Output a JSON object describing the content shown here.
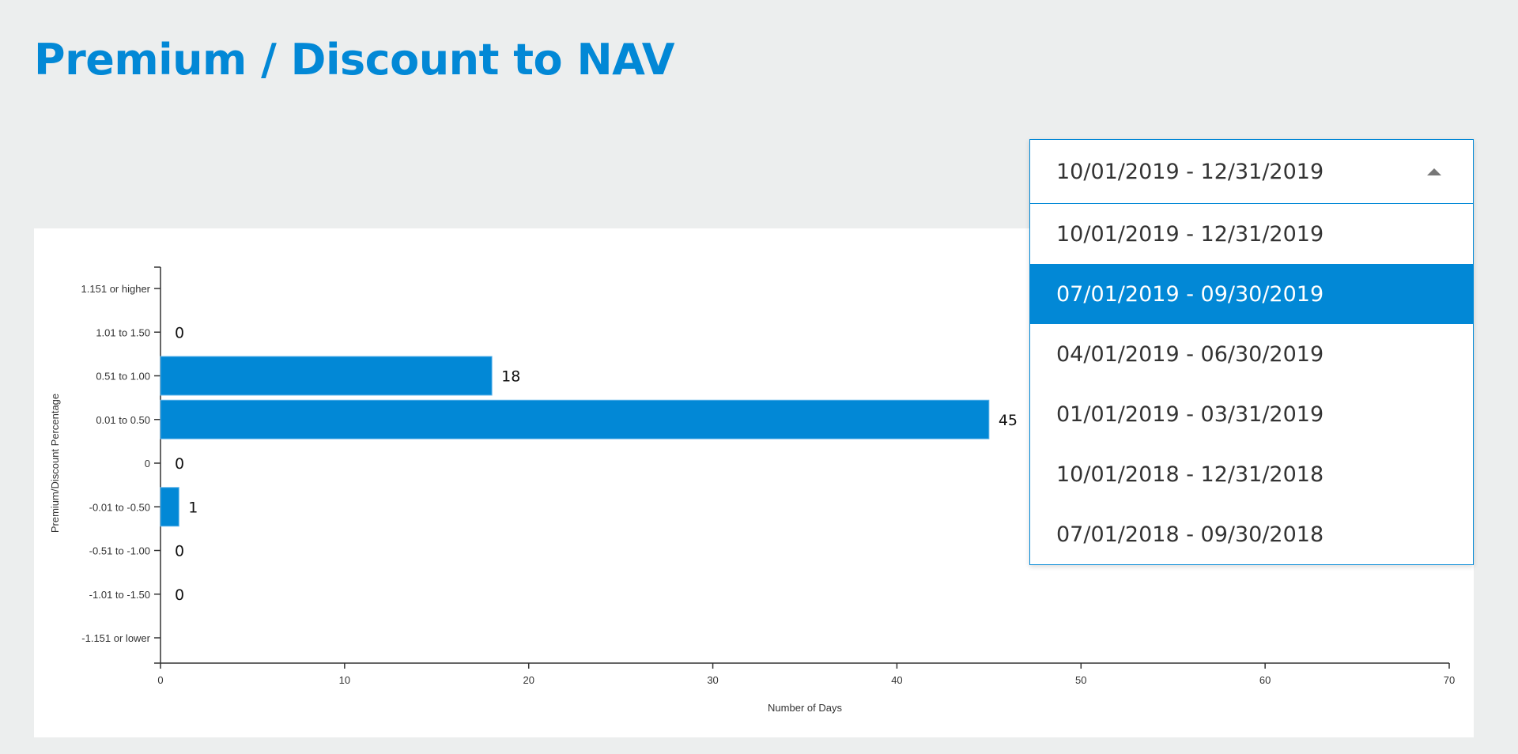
{
  "title": "Premium / Discount to NAV",
  "dropdown": {
    "selected": "10/01/2019 - 12/31/2019",
    "highlighted_index": 1,
    "options": [
      "10/01/2019 - 12/31/2019",
      "07/01/2019 - 09/30/2019",
      "04/01/2019 - 06/30/2019",
      "01/01/2019 - 03/31/2019",
      "10/01/2018 - 12/31/2018",
      "07/01/2018 - 09/30/2018"
    ]
  },
  "colors": {
    "accent": "#0288d6",
    "background": "#eceeee"
  },
  "chart_data": {
    "type": "bar",
    "orientation": "horizontal",
    "categories": [
      "1.151 or higher",
      "1.01 to 1.50",
      "0.51 to 1.00",
      "0.01 to 0.50",
      "0",
      "-0.01 to -0.50",
      "-0.51 to -1.00",
      "-1.01 to -1.50",
      "-1.151 or lower"
    ],
    "values": [
      null,
      0,
      18,
      45,
      0,
      1,
      0,
      0,
      null
    ],
    "xlabel": "Number of Days",
    "ylabel": "Premium/Discount Percentage",
    "xlim": [
      0,
      70
    ],
    "xticks": [
      0,
      10,
      20,
      30,
      40,
      50,
      60,
      70
    ],
    "grid": false
  }
}
